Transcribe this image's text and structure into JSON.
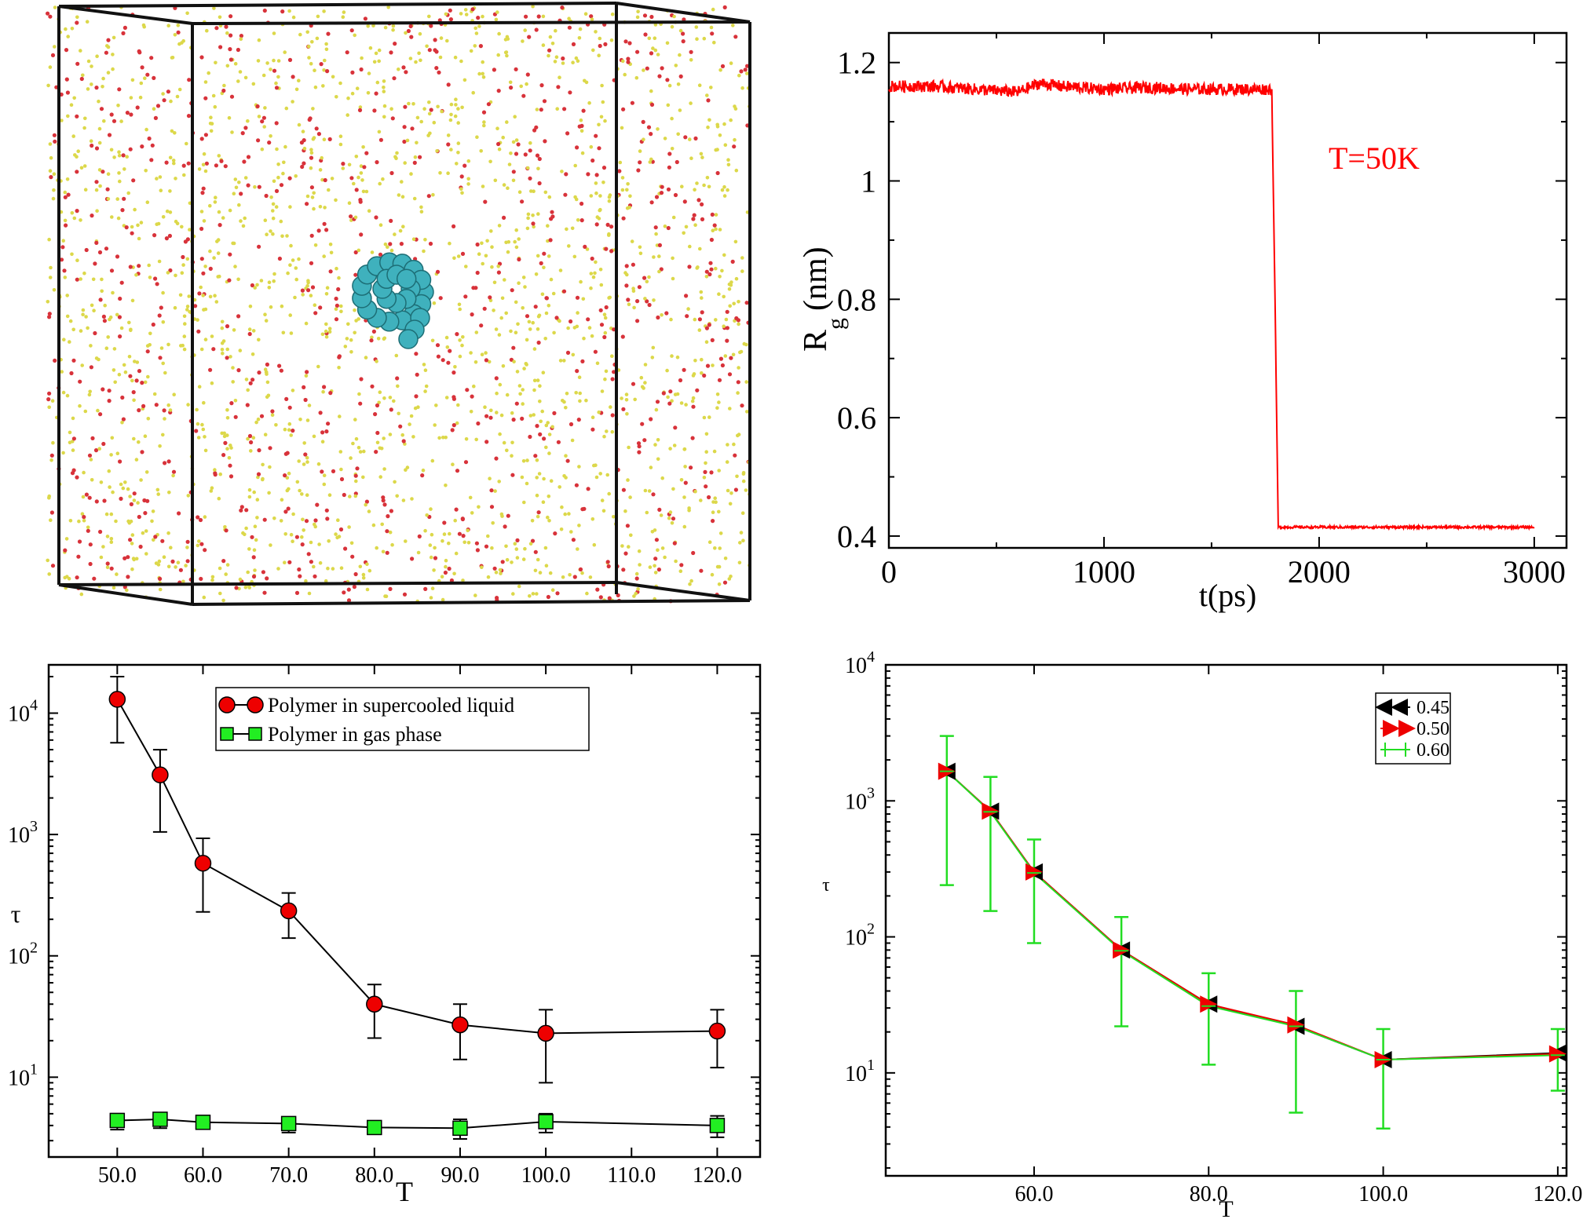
{
  "chart_data": [
    {
      "type": "image",
      "panel": "top-left",
      "description_kind": "molecular-simulation-snapshot",
      "colors": {
        "box_edges": "#111111",
        "atoms_small_a": "#dcd84a",
        "atoms_small_b": "#d8323a",
        "polymer": "#3fb1bd"
      }
    },
    {
      "type": "line",
      "panel": "top-right",
      "xlabel": "t(ps)",
      "ylabel_main": "R",
      "ylabel_sub": "g",
      "ylabel_unit": "(nm)",
      "annotation": "T=50K",
      "xlim": [
        0,
        3150
      ],
      "ylim": [
        0.38,
        1.25
      ],
      "xticks": [
        0,
        1000,
        2000,
        3000
      ],
      "xtick_labels": [
        "0",
        "1000",
        "2000",
        "3000"
      ],
      "yticks": [
        0.4,
        0.6,
        0.8,
        1.0,
        1.2
      ],
      "ytick_labels": [
        "0.4",
        "0.6",
        "0.8",
        "1",
        "1.2"
      ],
      "grid": false,
      "series": [
        {
          "color": "#ff0000",
          "x": [
            0,
            200,
            400,
            600,
            700,
            800,
            1000,
            1200,
            1400,
            1600,
            1780,
            1795,
            1810,
            2000,
            2200,
            2400,
            2600,
            2800,
            3000
          ],
          "values": [
            1.16,
            1.16,
            1.155,
            1.15,
            1.165,
            1.16,
            1.155,
            1.158,
            1.155,
            1.155,
            1.155,
            0.8,
            0.415,
            0.415,
            0.415,
            0.415,
            0.415,
            0.415,
            0.415
          ],
          "noise_before_drop": 0.02,
          "noise_after_drop": 0.004
        }
      ]
    },
    {
      "type": "scatter",
      "panel": "bottom-left",
      "xlabel": "T",
      "ylabel": "τ",
      "yscale": "log",
      "xlim": [
        42,
        125
      ],
      "ylim": [
        2.2,
        25000
      ],
      "xticks": [
        50,
        60,
        70,
        80,
        90,
        100,
        110,
        120
      ],
      "xtick_labels": [
        "50.0",
        "60.0",
        "70.0",
        "80.0",
        "90.0",
        "100.0",
        "110.0",
        "120.0"
      ],
      "yticks": [
        10,
        100,
        1000,
        10000
      ],
      "ytick_labels": [
        {
          "base": "10",
          "exp": "1"
        },
        {
          "base": "10",
          "exp": "2"
        },
        {
          "base": "10",
          "exp": "3"
        },
        {
          "base": "10",
          "exp": "4"
        }
      ],
      "legend_placement": "top-center",
      "grid": false,
      "series": [
        {
          "name": "Polymer in supercooled liquid",
          "marker": "circle",
          "color": "#ee0000",
          "x": [
            50,
            55,
            60,
            70,
            80,
            90,
            100,
            120
          ],
          "values": [
            13000,
            3100,
            580,
            235,
            40,
            27,
            23,
            24
          ],
          "err_low": [
            5700,
            1050,
            230,
            140,
            21,
            14,
            9,
            12
          ],
          "err_high": [
            20000,
            5000,
            930,
            330,
            58,
            40,
            36,
            36
          ]
        },
        {
          "name": "Polymer in gas phase",
          "marker": "square",
          "color": "#22ee22",
          "x": [
            50,
            55,
            60,
            70,
            80,
            90,
            100,
            120
          ],
          "values": [
            4.4,
            4.5,
            4.25,
            4.15,
            3.85,
            3.8,
            4.3,
            4.0
          ],
          "err_low": [
            3.7,
            3.8,
            3.9,
            3.5,
            3.6,
            3.1,
            3.5,
            3.2
          ],
          "err_high": [
            5.0,
            5.1,
            4.6,
            4.7,
            4.1,
            4.5,
            5.0,
            4.8
          ]
        }
      ]
    },
    {
      "type": "line",
      "panel": "bottom-right",
      "xlabel": "T",
      "ylabel": "τ",
      "yscale": "log",
      "xlim": [
        43,
        121
      ],
      "ylim": [
        1.75,
        10000
      ],
      "xticks": [
        60,
        80,
        100,
        120
      ],
      "xtick_labels": [
        "60.0",
        "80.0",
        "100.0",
        "120.0"
      ],
      "yticks": [
        10,
        100,
        1000,
        10000
      ],
      "ytick_labels": [
        {
          "base": "10",
          "exp": "1"
        },
        {
          "base": "10",
          "exp": "2"
        },
        {
          "base": "10",
          "exp": "3"
        },
        {
          "base": "10",
          "exp": "4"
        }
      ],
      "legend_placement": "top-right",
      "grid": false,
      "series": [
        {
          "name": "0.45",
          "marker": "triangle-left",
          "color": "#000000",
          "x": [
            50,
            55,
            60,
            70,
            80,
            90,
            100,
            120
          ],
          "values": [
            1650,
            840,
            300,
            80,
            32,
            22,
            12.5,
            14
          ]
        },
        {
          "name": "0.50",
          "marker": "triangle-right",
          "color": "#ee0000",
          "x": [
            50,
            55,
            60,
            70,
            80,
            90,
            100,
            120
          ],
          "values": [
            1650,
            840,
            300,
            80,
            32,
            22.5,
            12.5,
            13.8
          ]
        },
        {
          "name": "0.60",
          "marker": "plus",
          "color": "#22dd22",
          "x": [
            50,
            55,
            60,
            70,
            80,
            90,
            100,
            120
          ],
          "values": [
            1650,
            830,
            295,
            79,
            31,
            22,
            12.5,
            13.5
          ],
          "err_low": [
            240,
            155,
            90,
            22,
            11.5,
            5.1,
            3.9,
            7.4
          ],
          "err_high": [
            3000,
            1500,
            520,
            140,
            54,
            40,
            21,
            21
          ]
        }
      ]
    }
  ]
}
